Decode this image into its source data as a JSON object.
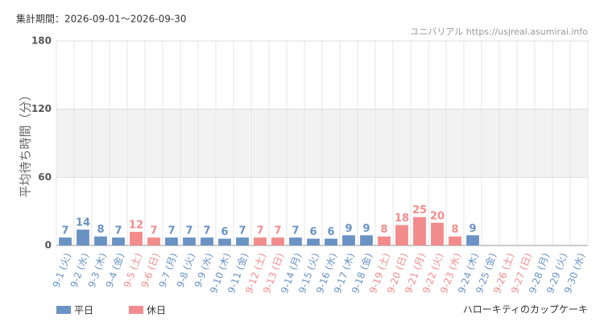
{
  "chart_data": {
    "type": "bar",
    "period": "集計期間：2026-09-01〜2026-09-30",
    "source": "ユニバリアル https://usjreal.asumirai.info",
    "attraction": "ハローキティのカップケーキ",
    "ylabel": "平均待ち時間（分）",
    "categories": [
      "9-1 (火)",
      "9-2 (水)",
      "9-3 (木)",
      "9-4 (金)",
      "9-5 (土)",
      "9-6 (日)",
      "9-7 (月)",
      "9-8 (火)",
      "9-9 (水)",
      "9-10 (木)",
      "9-11 (金)",
      "9-12 (土)",
      "9-13 (日)",
      "9-14 (月)",
      "9-15 (火)",
      "9-16 (水)",
      "9-17 (木)",
      "9-18 (金)",
      "9-19 (土)",
      "9-20 (日)",
      "9-21 (月)",
      "9-22 (火)",
      "9-23 (水)",
      "9-24 (木)",
      "9-25 (金)",
      "9-26 (土)",
      "9-27 (日)",
      "9-28 (月)",
      "9-29 (火)",
      "9-30 (水)"
    ],
    "values": [
      7,
      14,
      8,
      7,
      12,
      7,
      7,
      7,
      7,
      6,
      7,
      7,
      7,
      7,
      6,
      6,
      9,
      9,
      8,
      18,
      25,
      20,
      8,
      9,
      null,
      null,
      null,
      null,
      null,
      null
    ],
    "category_colors": [
      "#6a93c4",
      "#6a93c4",
      "#6a93c4",
      "#6a93c4",
      "#f28c8c",
      "#f28c8c",
      "#6a93c4",
      "#6a93c4",
      "#6a93c4",
      "#6a93c4",
      "#6a93c4",
      "#f28c8c",
      "#f28c8c",
      "#6a93c4",
      "#6a93c4",
      "#6a93c4",
      "#6a93c4",
      "#6a93c4",
      "#f28c8c",
      "#f28c8c",
      "#f28c8c",
      "#f28c8c",
      "#f28c8c",
      "#6a93c4",
      "#6a93c4",
      "#f28c8c",
      "#f28c8c",
      "#6a93c4",
      "#6a93c4",
      "#6a93c4"
    ],
    "legend": [
      {
        "name": "平日",
        "color": "#6a93c4"
      },
      {
        "name": "休日",
        "color": "#f28c8c"
      }
    ],
    "ylim": [
      0,
      180
    ],
    "yticks": [
      0,
      60,
      120,
      180
    ],
    "grid": true
  }
}
